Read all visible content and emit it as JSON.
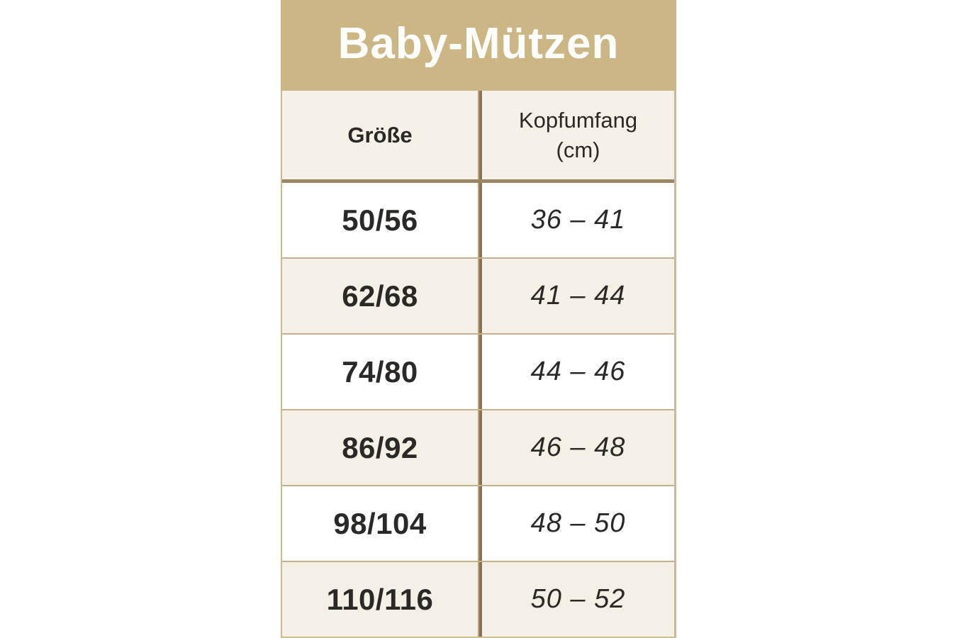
{
  "title": "Baby-Mützen",
  "columns": {
    "size_header": "Größe",
    "circumference_header": "Kopfumfang\n(cm)"
  },
  "rows": [
    {
      "size": "50/56",
      "circumference": "36 – 41"
    },
    {
      "size": "62/68",
      "circumference": "41 – 44"
    },
    {
      "size": "74/80",
      "circumference": "44 – 46"
    },
    {
      "size": "86/92",
      "circumference": "46 – 48"
    },
    {
      "size": "98/104",
      "circumference": "48 – 50"
    },
    {
      "size": "110/116",
      "circumference": "50 – 52"
    }
  ],
  "colors": {
    "title_band_bg": "#ccb683",
    "title_text": "#ffffff",
    "header_row_bg": "#f5f1e7",
    "alt_row_bg": "#f4f0e6",
    "white_row_bg": "#ffffff",
    "row_rule": "#c2b18c",
    "header_separator": "#9b8565",
    "column_divider": "#867355",
    "outer_border": "#cdbb8d",
    "text": "#2b2927"
  },
  "chart_data": {
    "type": "table",
    "title": "Baby-Mützen",
    "columns": [
      "Größe",
      "Kopfumfang (cm)"
    ],
    "rows": [
      [
        "50/56",
        "36 – 41"
      ],
      [
        "62/68",
        "41 – 44"
      ],
      [
        "74/80",
        "44 – 46"
      ],
      [
        "86/92",
        "46 – 48"
      ],
      [
        "98/104",
        "48 – 50"
      ],
      [
        "110/116",
        "50 – 52"
      ]
    ]
  }
}
